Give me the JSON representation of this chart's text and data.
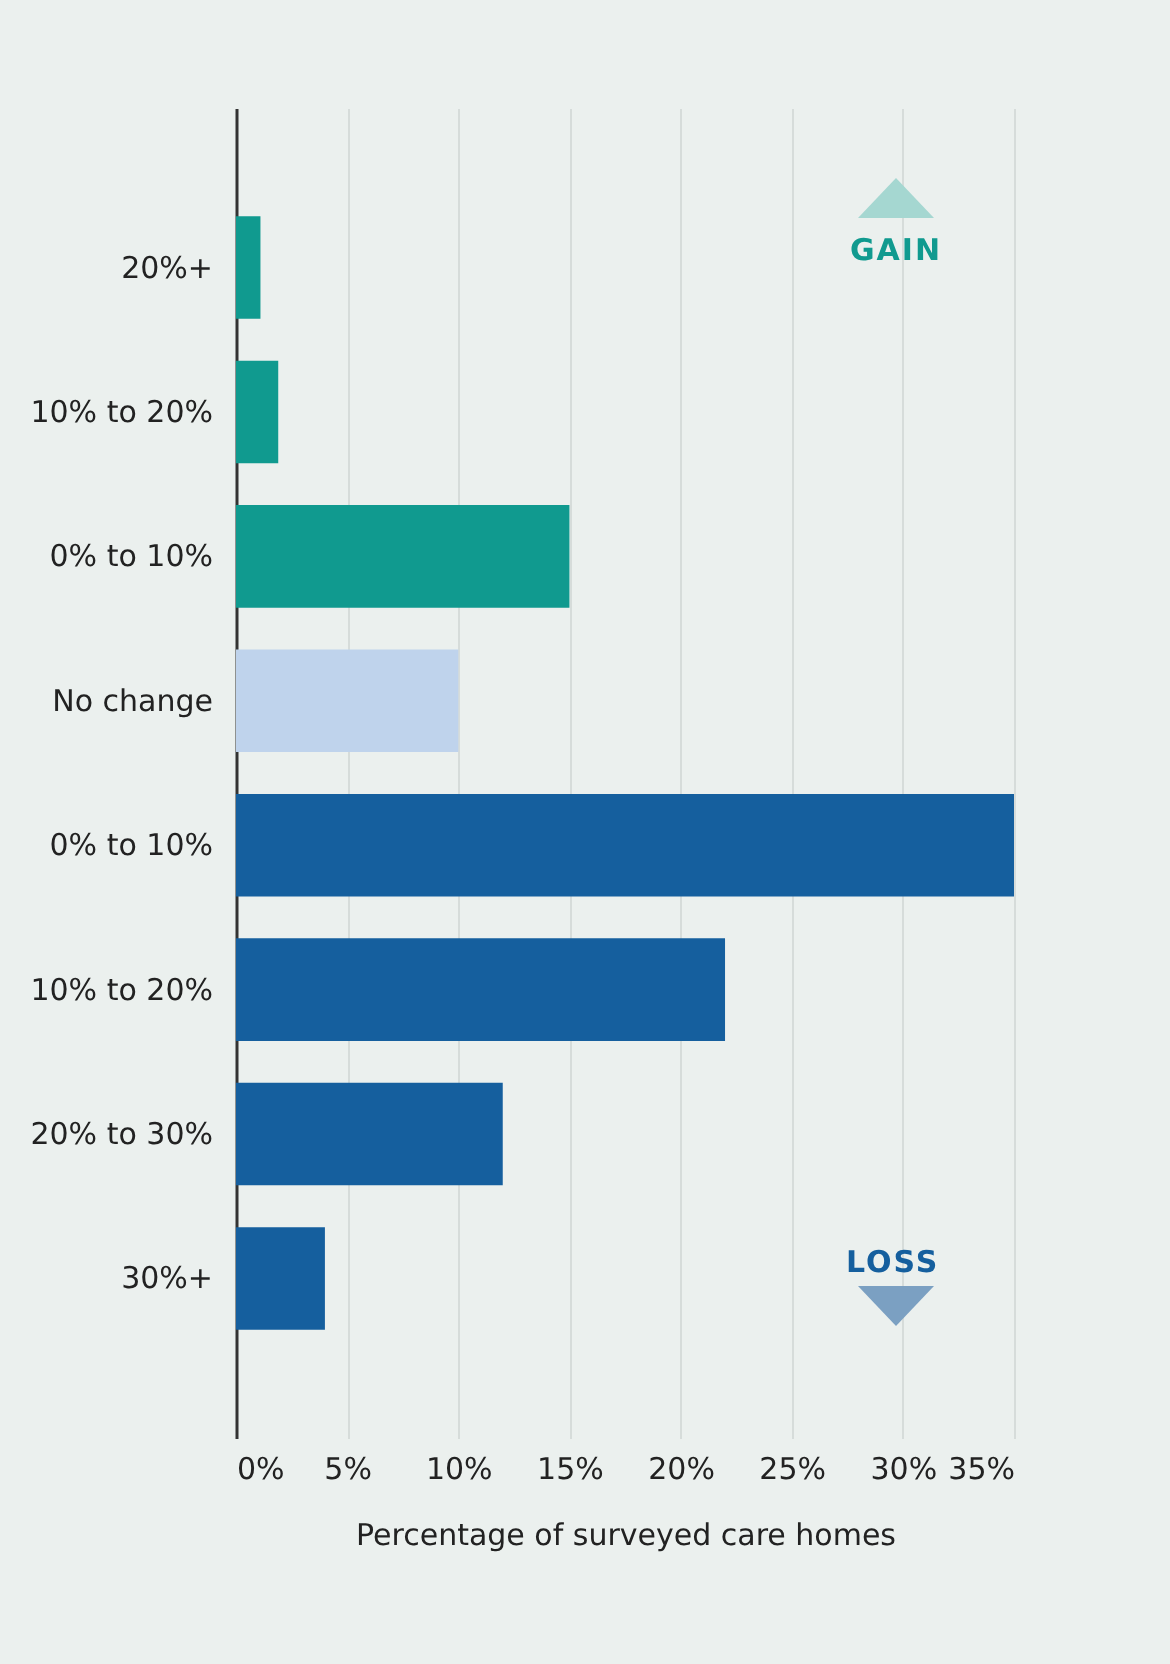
{
  "chart_data": {
    "type": "bar",
    "orientation": "horizontal",
    "xlabel": "Percentage of surveyed care homes",
    "categories": [
      "20%+",
      "10% to 20%",
      "0% to 10%",
      "No change",
      "0% to 10%",
      "10% to 20%",
      "20% to 30%",
      "30%+"
    ],
    "values": [
      1.1,
      1.9,
      15,
      10,
      35,
      22,
      12,
      4
    ],
    "colors": [
      "#109a8f",
      "#109a8f",
      "#109a8f",
      "#bfd3ec",
      "#155f9e",
      "#155f9e",
      "#155f9e",
      "#155f9e"
    ],
    "xlim": [
      0,
      35
    ],
    "xticks": [
      {
        "value": 0,
        "label": "0%"
      },
      {
        "value": 5,
        "label": "5%"
      },
      {
        "value": 10,
        "label": "10%"
      },
      {
        "value": 15,
        "label": "15%"
      },
      {
        "value": 20,
        "label": "20%"
      },
      {
        "value": 25,
        "label": "25%"
      },
      {
        "value": 30,
        "label": "30%"
      },
      {
        "value": 35,
        "label": "35%"
      }
    ],
    "grid": "x",
    "annotations": [
      "GAIN",
      "LOSS"
    ]
  }
}
